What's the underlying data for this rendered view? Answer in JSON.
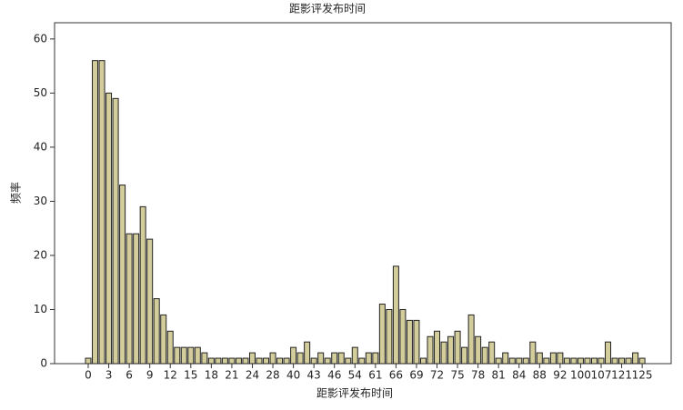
{
  "chart_data": {
    "type": "bar",
    "title": "距影评发布时间",
    "x_label": "距影评发布时间",
    "y_label": "频率",
    "categories": [
      "0",
      null,
      null,
      "3",
      null,
      null,
      "6",
      null,
      null,
      "9",
      null,
      null,
      "12",
      null,
      null,
      "15",
      null,
      null,
      "18",
      null,
      null,
      "21",
      null,
      null,
      "24",
      null,
      null,
      "28",
      null,
      null,
      "40",
      null,
      null,
      "43",
      null,
      null,
      "46",
      null,
      null,
      "54",
      null,
      null,
      "61",
      null,
      null,
      "66",
      null,
      null,
      "69",
      null,
      null,
      "72",
      null,
      null,
      "75",
      null,
      null,
      "78",
      null,
      null,
      "81",
      null,
      null,
      "84",
      null,
      null,
      "88",
      null,
      null,
      "92",
      null,
      null,
      "100",
      null,
      null,
      "107",
      null,
      null,
      "121",
      null,
      null,
      "125"
    ],
    "values": [
      1,
      56,
      56,
      50,
      49,
      33,
      24,
      24,
      29,
      23,
      12,
      9,
      6,
      3,
      3,
      3,
      3,
      2,
      1,
      1,
      1,
      1,
      1,
      1,
      2,
      1,
      1,
      2,
      1,
      1,
      3,
      2,
      4,
      1,
      2,
      1,
      2,
      2,
      1,
      3,
      1,
      2,
      2,
      11,
      10,
      18,
      10,
      8,
      8,
      1,
      5,
      6,
      4,
      5,
      6,
      3,
      9,
      5,
      3,
      4,
      1,
      2,
      1,
      1,
      1,
      4,
      2,
      1,
      2,
      2,
      1,
      1,
      1,
      1,
      1,
      1,
      4,
      1,
      1,
      1,
      2,
      1
    ],
    "color": "#d3cd9c",
    "ylim": [
      0,
      63
    ],
    "yticks": [
      0,
      10,
      20,
      30,
      40,
      50,
      60
    ]
  }
}
